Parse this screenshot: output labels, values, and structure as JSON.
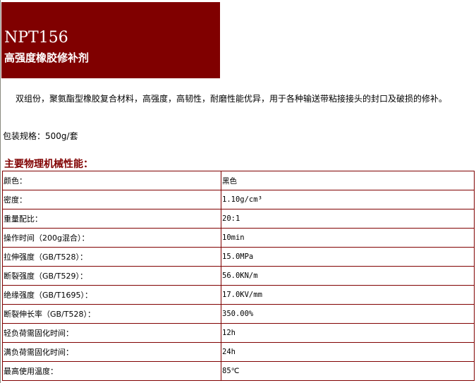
{
  "header": {
    "code": "NPT156",
    "name": "高强度橡胶修补剂",
    "bg_color": "#800000"
  },
  "description": "双组份，聚氨酯型橡胶复合材料，高强度，高韧性，耐磨性能优异，用于各种输送带粘接接头的封口及破损的修补。",
  "packaging": "包装规格：500g/套",
  "section_title": "主要物理机械性能：",
  "properties": [
    {
      "label": "颜色：",
      "value": "黑色"
    },
    {
      "label": "密度：",
      "value": "1.10g/cm³"
    },
    {
      "label": "重量配比：",
      "value": " 20:1"
    },
    {
      "label": "操作时间（200g混合）：",
      "value": "10min"
    },
    {
      "label": "拉伸强度（GB/T528）：",
      "value": "15.0MPa"
    },
    {
      "label": "断裂强度（GB/T529）：",
      "value": "56.0KN/m"
    },
    {
      "label": "绝缘强度（GB/T1695）：",
      "value": "17.0KV/mm"
    },
    {
      "label": "断裂伸长率（GB/T528）：",
      "value": "350.00%"
    },
    {
      "label": "轻负荷需固化时间：",
      "value": "12h"
    },
    {
      "label": "满负荷需固化时间：",
      "value": "24h"
    },
    {
      "label": "最高使用温度：",
      "value": "85℃"
    }
  ]
}
